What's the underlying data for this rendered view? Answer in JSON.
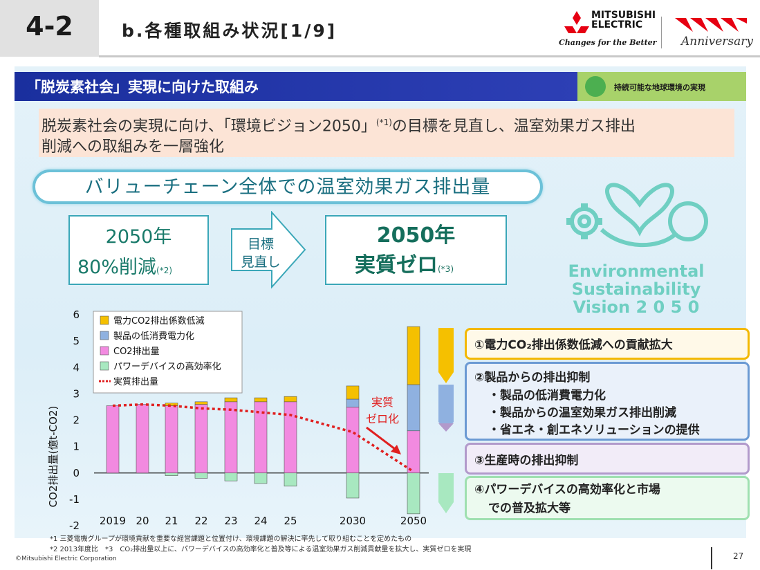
{
  "header": {
    "section_number": "4-2",
    "title": "b.各種取組み状況[1/9]",
    "logo_text_1": "MITSUBISHI",
    "logo_text_2": "ELECTRIC",
    "logo_tagline": "Changes for the Better",
    "anniversary_text": "Anniversary"
  },
  "banner": {
    "title": "「脱炭素社会」実現に向けた取組み",
    "tag_label": "持続可能な地球環境の実現"
  },
  "intro": {
    "line1": "脱炭素社会の実現に向け、「環境ビジョン2050」",
    "note": "(*1)",
    "line1b": "の目標を見直し、温室効果ガス排出",
    "line2": "削減への取組みを一層強化"
  },
  "value_chain": {
    "title": "バリューチェーン全体での温室効果ガス排出量"
  },
  "target_old": {
    "line1": "2050年",
    "line2": "80%削減",
    "note": "(*2)"
  },
  "arrow": {
    "line1": "目標",
    "line2": "見直し"
  },
  "target_new": {
    "line1": "2050年",
    "line2": "実質ゼロ",
    "note": "(*3)"
  },
  "vision": {
    "line1": "Environmental",
    "line2": "Sustainability",
    "line3": "Vision 2 0 5 0"
  },
  "chart_data": {
    "type": "bar",
    "ylabel": "CO2排出量(億t-CO2)",
    "ylim": [
      -2,
      6
    ],
    "yticks": [
      "6",
      "5",
      "4",
      "3",
      "2",
      "1",
      "0",
      "-1",
      "-2"
    ],
    "categories": [
      "2019",
      "20",
      "21",
      "22",
      "23",
      "24",
      "25",
      "2030",
      "2050"
    ],
    "series": [
      {
        "name": "電力CO2排出係数低減",
        "color": "#f5c000",
        "values": [
          0,
          0,
          0.1,
          0.1,
          0.15,
          0.15,
          0.2,
          0.5,
          2.2
        ]
      },
      {
        "name": "製品の低消費電力化",
        "color": "#8fb1e0",
        "values": [
          0,
          0,
          0,
          0,
          0,
          0,
          0,
          0.3,
          1.75
        ]
      },
      {
        "name": "CO2排出量",
        "color": "#f28ae0",
        "values": [
          2.55,
          2.6,
          2.55,
          2.6,
          2.7,
          2.7,
          2.7,
          2.5,
          1.6
        ]
      },
      {
        "name": "パワーデバイスの高効率化",
        "color": "#a8e8c0",
        "values": [
          0,
          0,
          -0.1,
          -0.2,
          -0.3,
          -0.4,
          -0.5,
          -0.95,
          -1.55
        ]
      }
    ],
    "line": {
      "name": "実質排出量",
      "color": "#e02020",
      "values": [
        2.55,
        2.6,
        2.55,
        2.45,
        2.4,
        2.3,
        2.2,
        1.55,
        0.05
      ]
    },
    "annotation": {
      "line1": "実質",
      "line2": "ゼロ化"
    },
    "legend_position": "top-left"
  },
  "actions": {
    "a1": "①電力CO₂排出係数低減への貢献拡大",
    "a2_title": "②製品からの排出抑制",
    "a2_items": [
      "・製品の低消費電力化",
      "・製品からの温室効果ガス排出削減",
      "・省エネ・創エネソリューションの提供"
    ],
    "a3": "③生産時の排出抑制",
    "a4_line1": "④パワーデバイスの高効率化と市場",
    "a4_line2": "での普及拡大等"
  },
  "footnotes": {
    "f1": "*1 三菱電機グループが環境貢献を重要な経営課題と位置付け、環境課題の解決に率先して取り組むことを定めたもの",
    "f2": "*2 2013年度比　*3　CO₂排出量以上に、パワーデバイスの高効率化と普及等による温室効果ガス削減貢献量を拡大し、実質ゼロを実現"
  },
  "copyright": "©Mitsubishi Electric Corporation",
  "page_number": "27"
}
